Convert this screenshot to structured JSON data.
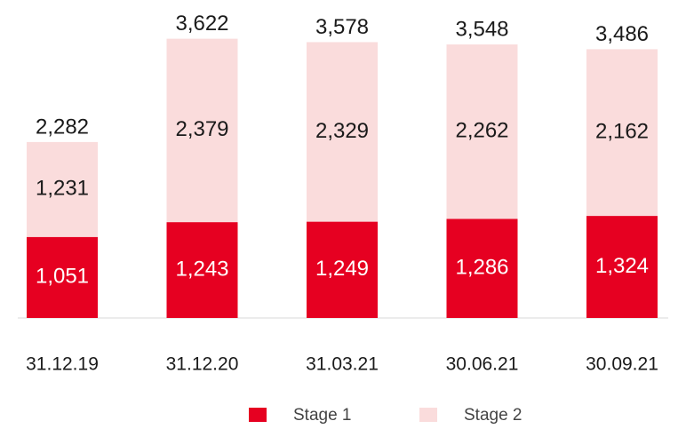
{
  "chart_data": {
    "type": "stacked-bar",
    "categories": [
      "31.12.19",
      "31.12.20",
      "31.03.21",
      "30.06.21",
      "30.09.21"
    ],
    "series": [
      {
        "name": "Stage 1",
        "color": "#e60021",
        "values": [
          1051,
          1243,
          1249,
          1286,
          1324
        ],
        "value_labels": [
          "1,051",
          "1,243",
          "1,249",
          "1,286",
          "1,324"
        ]
      },
      {
        "name": "Stage 2",
        "color": "#fadcdc",
        "values": [
          1231,
          2379,
          2329,
          2262,
          2162
        ],
        "value_labels": [
          "1,231",
          "2,379",
          "2,329",
          "2,262",
          "2,162"
        ]
      }
    ],
    "totals": [
      2282,
      3622,
      3578,
      3548,
      3486
    ],
    "total_labels": [
      "2,282",
      "3,622",
      "3,578",
      "3,548",
      "3,486"
    ]
  }
}
